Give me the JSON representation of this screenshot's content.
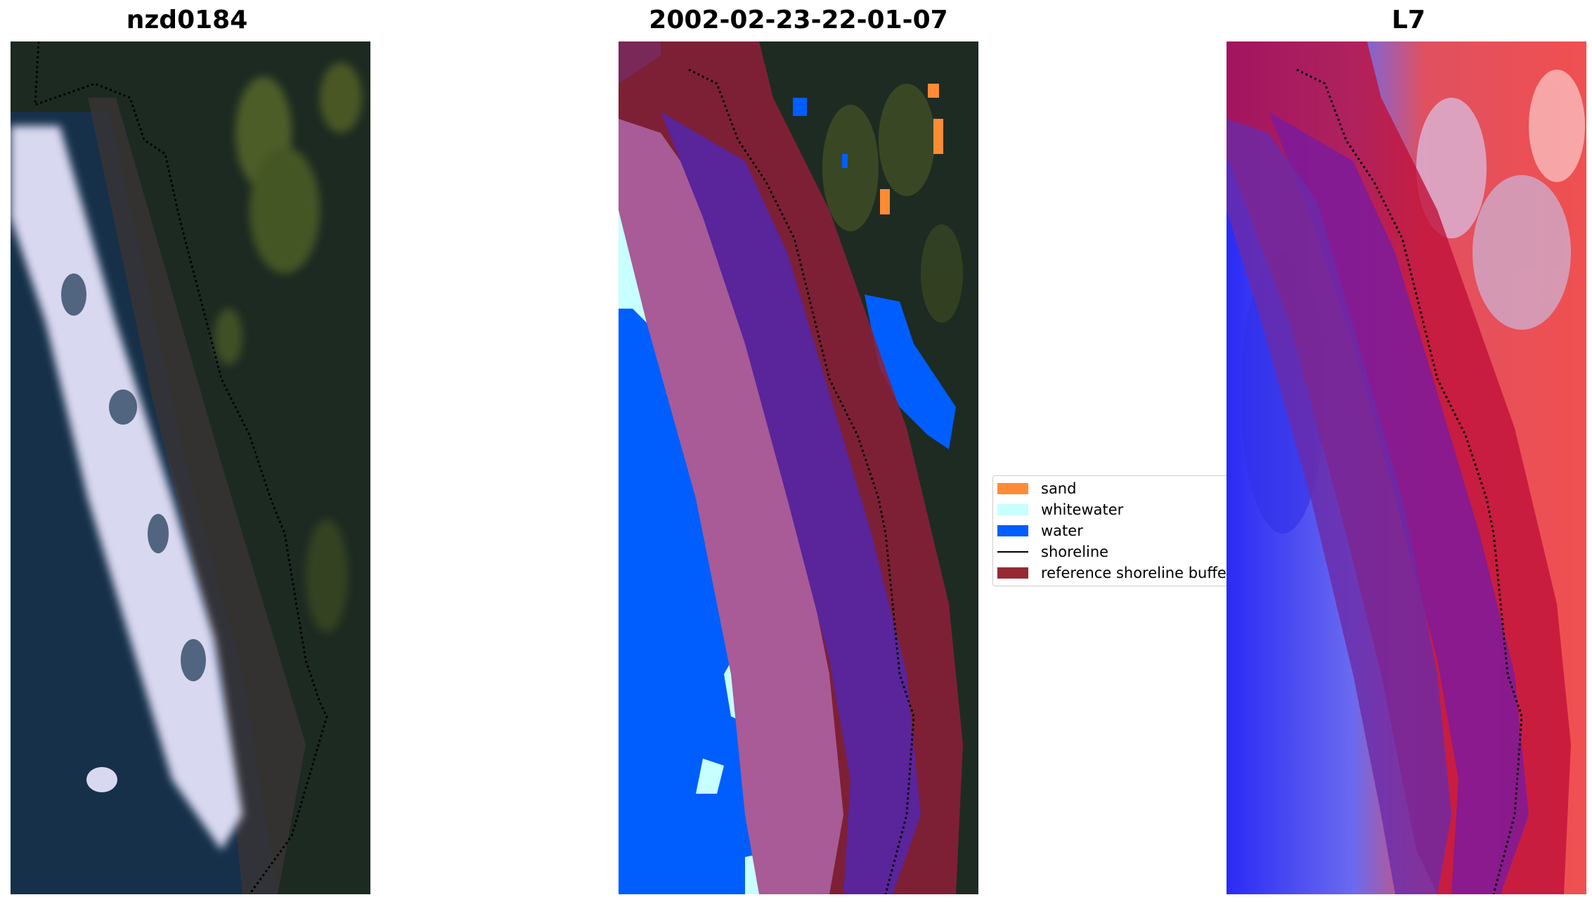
{
  "panels": [
    {
      "title": "nzd0184"
    },
    {
      "title": "2002-02-23-22-01-07"
    },
    {
      "title": "L7"
    }
  ],
  "legend": {
    "items": [
      {
        "label": "sand",
        "color": "#ff8b35"
      },
      {
        "label": "whitewater",
        "color": "#c8ffff"
      },
      {
        "label": "water",
        "color": "#005eff"
      },
      {
        "label": "shoreline",
        "color": "#000000"
      },
      {
        "label": "reference shoreline buffer",
        "color": "#952a33"
      }
    ]
  }
}
